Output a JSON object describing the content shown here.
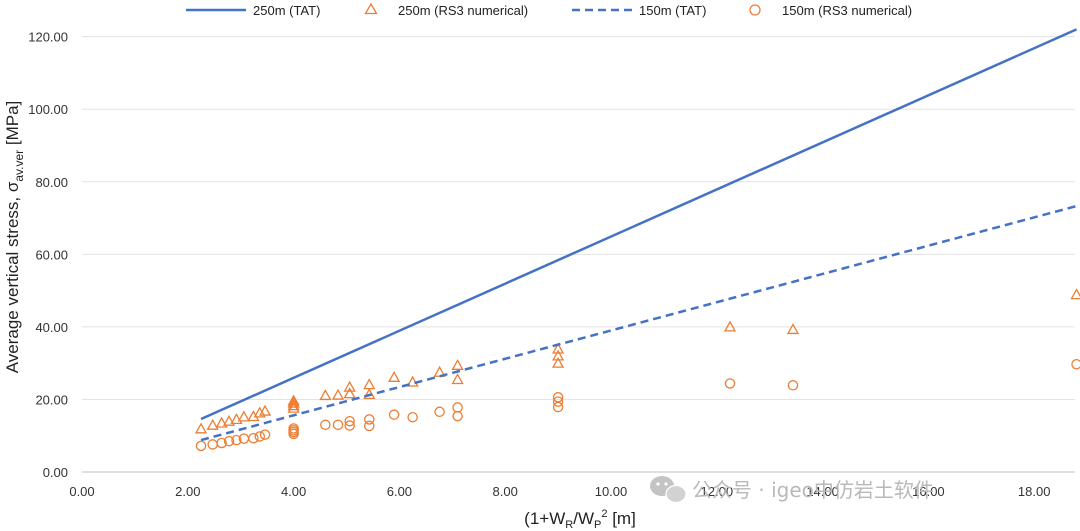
{
  "chart_data": {
    "type": "scatter",
    "title": "",
    "xlabel": {
      "main": "(1+W",
      "sub1": "R",
      "mid": "/W",
      "sub2": "P",
      "sup": "2",
      "end": " [m]"
    },
    "ylabel": {
      "main": "Average vertical stress, σ",
      "sub": "av.ver",
      "end": " [MPa]"
    },
    "xlim": [
      0,
      19
    ],
    "ylim": [
      0,
      130
    ],
    "xticks": [
      "0.00",
      "2.00",
      "4.00",
      "6.00",
      "8.00",
      "10.00",
      "12.00",
      "14.00",
      "16.00",
      "18.00"
    ],
    "xtick_values": [
      0,
      2,
      4,
      6,
      8,
      10,
      12,
      14,
      16,
      18
    ],
    "yticks": [
      "0.00",
      "20.00",
      "40.00",
      "60.00",
      "80.00",
      "100.00",
      "120.00"
    ],
    "ytick_values": [
      0,
      20,
      40,
      60,
      80,
      100,
      120
    ],
    "legend_position": "top",
    "series": [
      {
        "name": "250m (TAT)",
        "kind": "line",
        "style": "solid",
        "color": "#4472C4",
        "x": [
          2.25,
          18.8
        ],
        "y": [
          14.6,
          122.0
        ]
      },
      {
        "name": "250m (RS3 numerical)",
        "kind": "marker",
        "marker": "triangle",
        "color": "#ED7D31",
        "x": [
          2.25,
          2.47,
          2.64,
          2.78,
          2.92,
          3.06,
          3.24,
          3.36,
          3.46,
          4.0,
          4.0,
          4.0,
          4.0,
          4.6,
          4.84,
          5.06,
          5.06,
          5.43,
          5.43,
          5.9,
          6.25,
          6.76,
          7.1,
          7.1,
          9.0,
          9.0,
          9.0,
          12.25,
          13.44,
          18.8
        ],
        "y": [
          11.9,
          12.9,
          13.5,
          14.0,
          14.5,
          15.2,
          15.3,
          16.3,
          16.8,
          17.6,
          18.3,
          19.0,
          19.6,
          21.1,
          21.2,
          21.6,
          23.4,
          21.4,
          24.1,
          26.1,
          24.8,
          27.5,
          25.5,
          29.4,
          30.0,
          32.0,
          33.9,
          40.0,
          39.3,
          48.9
        ]
      },
      {
        "name": "150m (TAT)",
        "kind": "line",
        "style": "dashed",
        "color": "#4472C4",
        "x": [
          2.25,
          18.8
        ],
        "y": [
          8.8,
          73.3
        ]
      },
      {
        "name": "150m (RS3 numerical)",
        "kind": "marker",
        "marker": "circle",
        "color": "#ED7D31",
        "x": [
          2.25,
          2.47,
          2.64,
          2.78,
          2.92,
          3.06,
          3.24,
          3.36,
          3.46,
          4.0,
          4.0,
          4.0,
          4.0,
          4.6,
          4.84,
          5.06,
          5.06,
          5.43,
          5.43,
          5.9,
          6.25,
          6.76,
          7.1,
          7.1,
          9.0,
          9.0,
          9.0,
          12.25,
          13.44,
          18.8
        ],
        "y": [
          7.2,
          7.6,
          8.0,
          8.5,
          8.8,
          9.2,
          9.3,
          9.8,
          10.3,
          10.5,
          11.0,
          11.5,
          12.0,
          13.0,
          13.0,
          12.8,
          14.0,
          12.7,
          14.5,
          15.8,
          15.1,
          16.6,
          15.4,
          17.8,
          17.9,
          19.4,
          20.6,
          24.4,
          23.9,
          29.7
        ]
      }
    ]
  },
  "watermark": {
    "text": "公众号 · igeo中仿岩土软件",
    "icon": "wechat-icon"
  }
}
